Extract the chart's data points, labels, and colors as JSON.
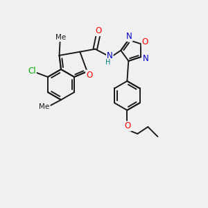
{
  "background_color": "#f0f0f0",
  "bond_color": "#1a1a1a",
  "atom_colors": {
    "O": "#ff0000",
    "N": "#0000cc",
    "Cl": "#00aa00",
    "C": "#1a1a1a",
    "H": "#008080"
  },
  "figsize": [
    3.0,
    3.0
  ],
  "dpi": 100
}
